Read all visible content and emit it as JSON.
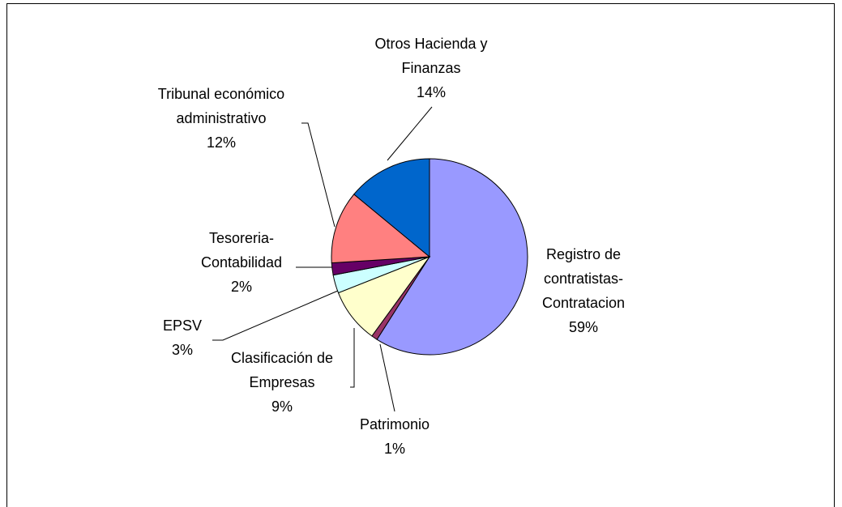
{
  "chart_data": {
    "type": "pie",
    "categories": [
      "Registro de\ncontratistas-\nContratacion",
      "Patrimonio",
      "Clasificación de\nEmpresas",
      "EPSV",
      "Tesoreria-\nContabilidad",
      "Tribunal económico\nadministrativo",
      "Otros Hacienda y\nFinanzas"
    ],
    "values": [
      59,
      1,
      9,
      3,
      2,
      12,
      14
    ],
    "value_labels": [
      "59%",
      "1%",
      "9%",
      "3%",
      "2%",
      "12%",
      "14%"
    ],
    "colors": [
      "#9999ff",
      "#993366",
      "#ffffcc",
      "#ccffff",
      "#660066",
      "#ff8080",
      "#0066cc"
    ]
  }
}
